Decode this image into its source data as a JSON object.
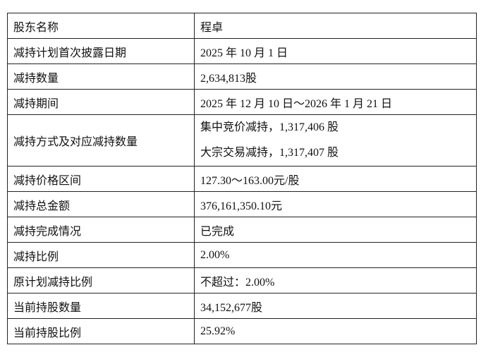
{
  "rows": [
    {
      "label": "股东名称",
      "value": "程卓"
    },
    {
      "label": "减持计划首次披露日期",
      "value": "2025 年 10 月 1 日"
    },
    {
      "label": "减持数量",
      "value": "2,634,813股"
    },
    {
      "label": "减持期间",
      "value": "2025 年 12 月 10 日～2026 年 1 月 21 日"
    },
    {
      "label": "减持方式及对应减持数量",
      "values": [
        "集中竞价减持，1,317,406 股",
        "大宗交易减持，1,317,407 股"
      ]
    },
    {
      "label": "减持价格区间",
      "value": "127.30～163.00元/股"
    },
    {
      "label": "减持总金额",
      "value": "376,161,350.10元"
    },
    {
      "label": "减持完成情况",
      "value": "已完成"
    },
    {
      "label": "减持比例",
      "value": "2.00%"
    },
    {
      "label": "原计划减持比例",
      "value": "不超过：2.00%"
    },
    {
      "label": "当前持股数量",
      "value": "34,152,677股"
    },
    {
      "label": "当前持股比例",
      "value": "25.92%"
    }
  ]
}
